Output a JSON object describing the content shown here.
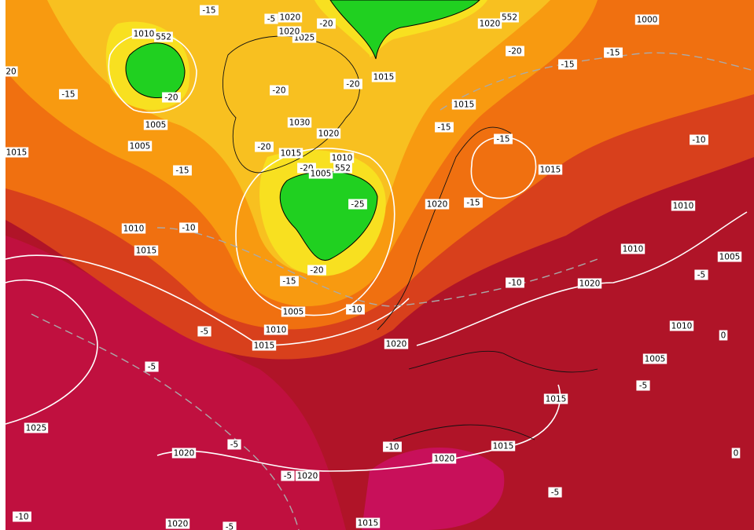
{
  "labels": [
    "1020",
    "1025",
    "1020",
    "-20",
    "-15",
    "-5",
    "1010",
    "552",
    "20",
    "-15",
    "-20",
    "1005",
    "1005",
    "1015",
    "-15",
    "1010",
    "1015",
    "-10",
    "-20",
    "-20",
    "1030",
    "1020",
    "-20",
    "1015",
    "1010",
    "552",
    "-20",
    "1005",
    "-25",
    "-15",
    "-20",
    "1005",
    "-10",
    "1010",
    "1015",
    "-5",
    "-5",
    "1025",
    "1020",
    "-5",
    "-5",
    "1020",
    "-10",
    "1020",
    "-5",
    "1015",
    "1020",
    "552",
    "-20",
    "1000",
    "-15",
    "-15",
    "1015",
    "-15",
    "-15",
    "-10",
    "1015",
    "1020",
    "-15",
    "1010",
    "1010",
    "1005",
    "-5",
    "1020",
    "-10",
    "1020",
    "1010",
    "1005",
    "-5",
    "1015",
    "1015",
    "-10",
    "1020",
    "-5",
    "1015",
    "0",
    "0"
  ]
}
